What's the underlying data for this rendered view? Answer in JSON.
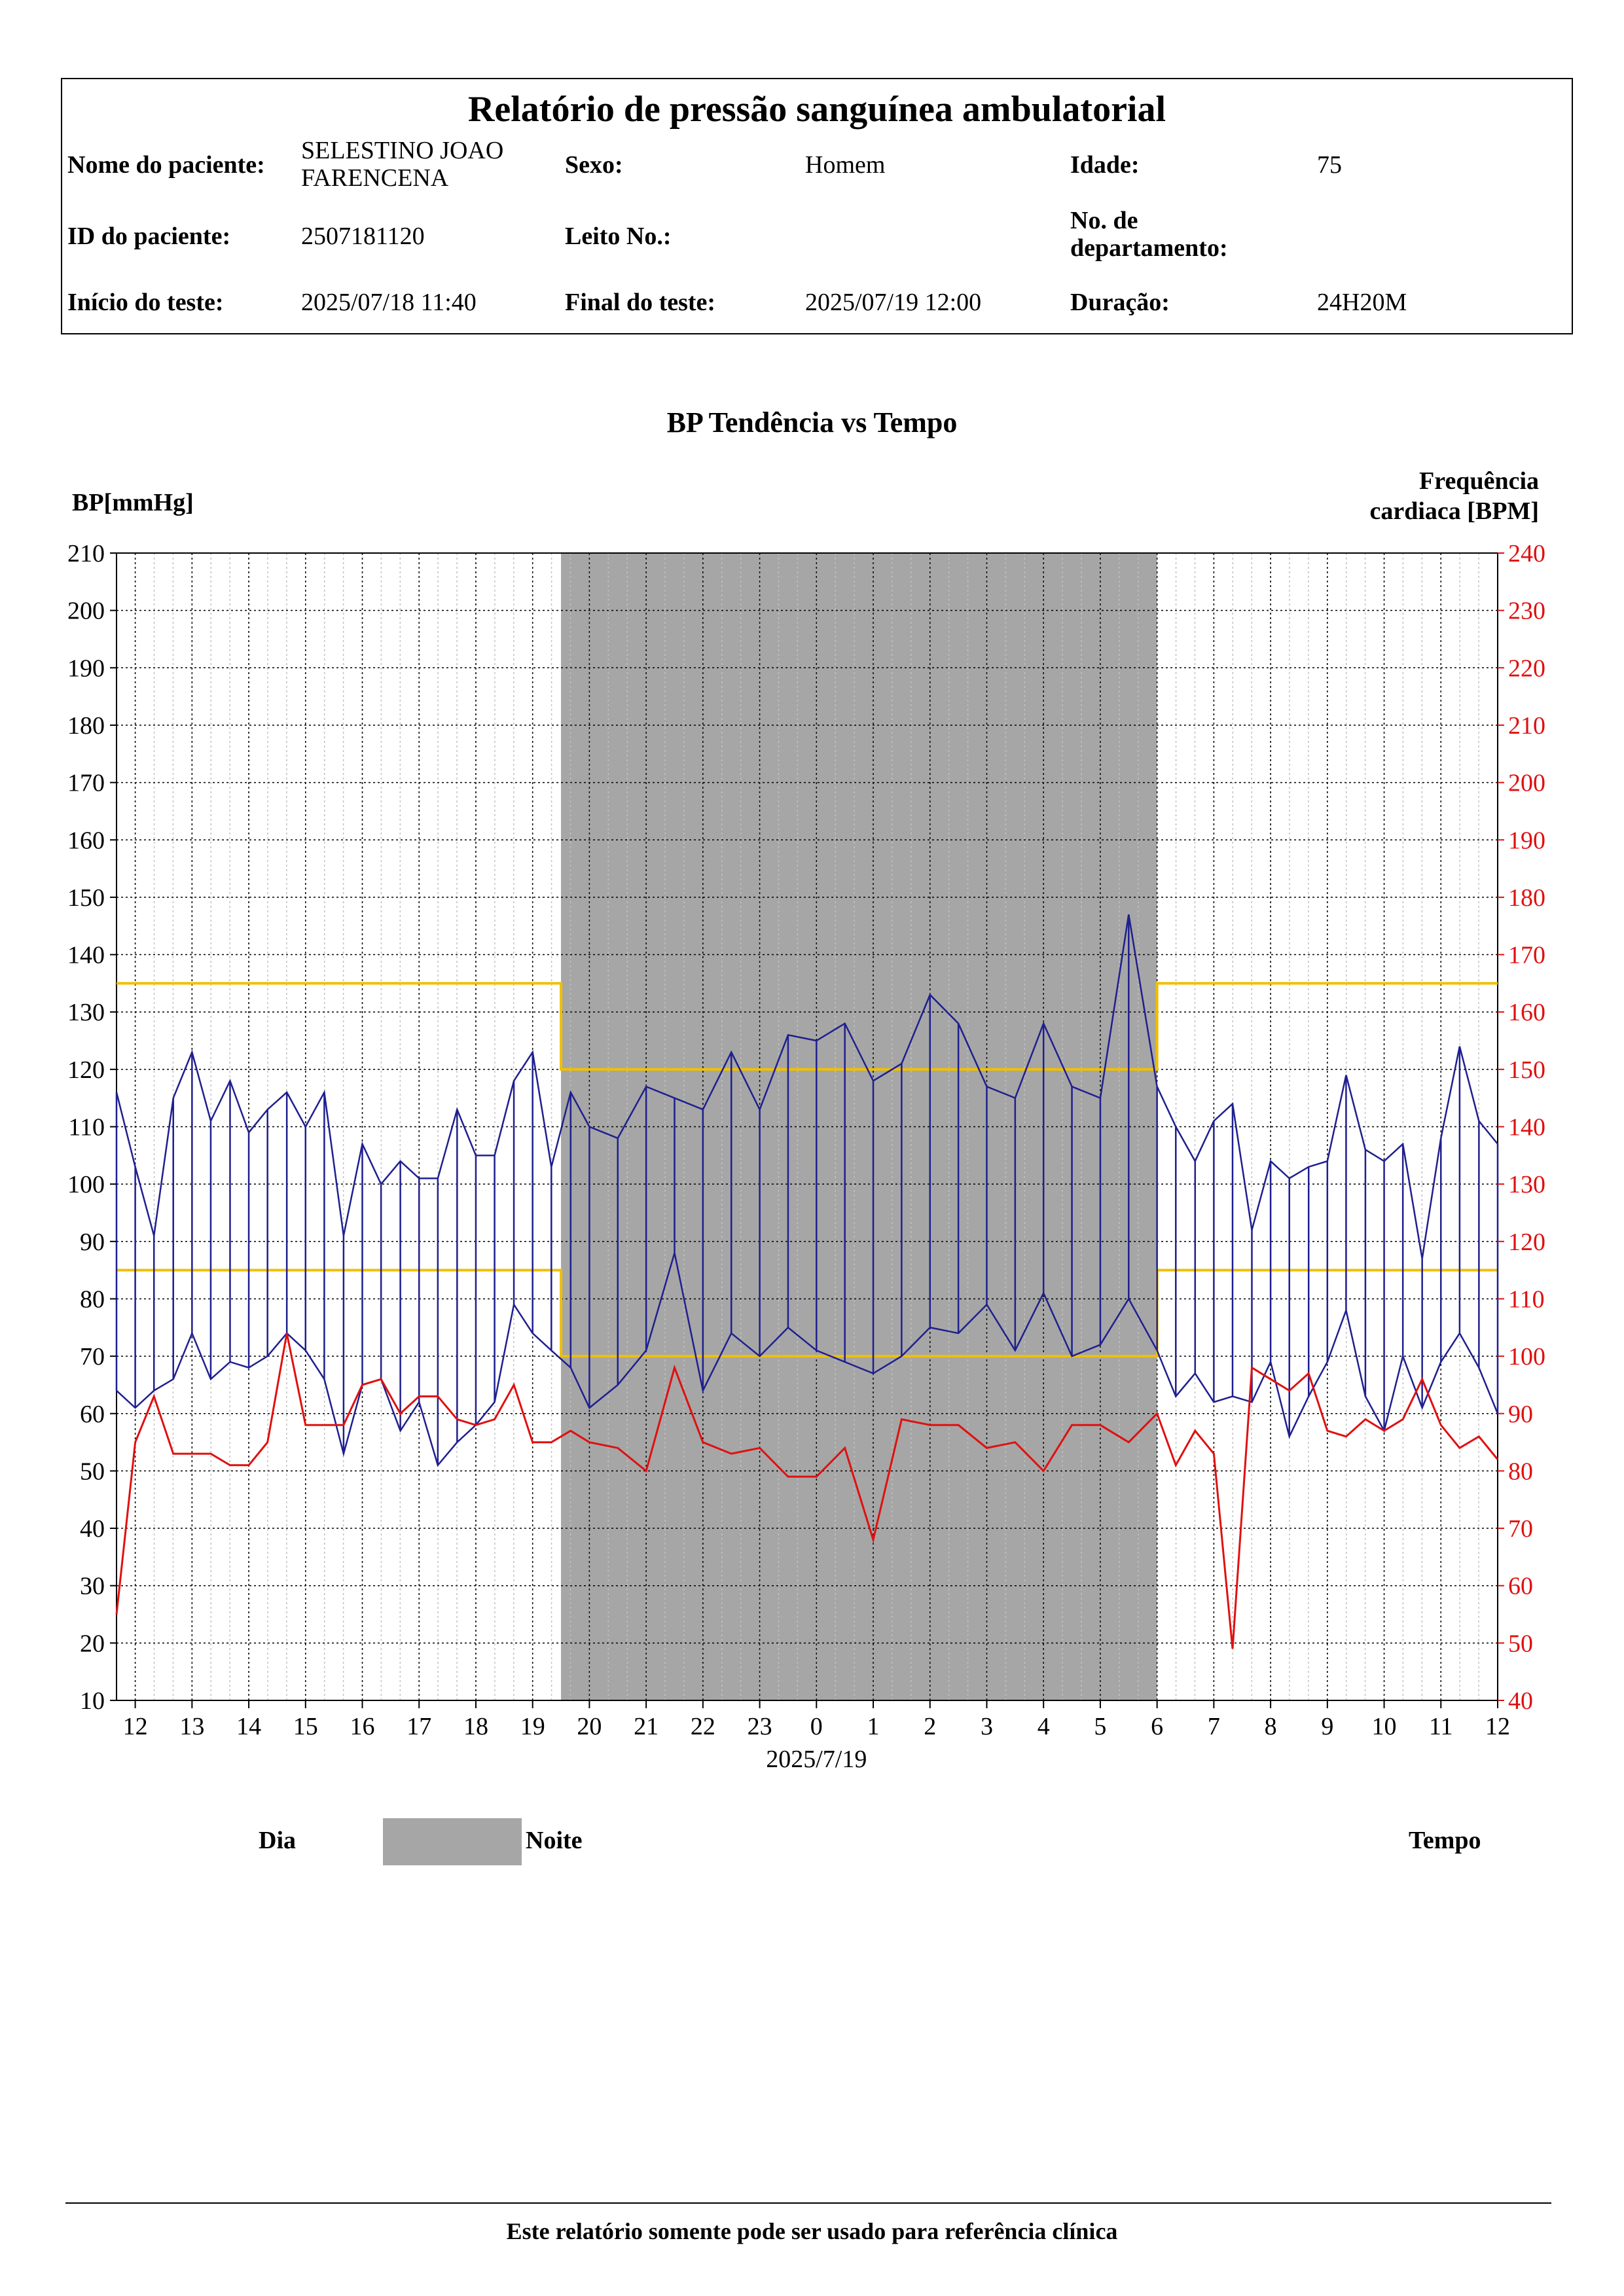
{
  "report": {
    "title": "Relatório de pressão sanguínea ambulatorial",
    "rows": [
      [
        {
          "label": "Nome do paciente:",
          "value": "SELESTINO JOAO FARENCENA"
        },
        {
          "label": "Sexo:",
          "value": "Homem"
        },
        {
          "label": "Idade:",
          "value": "75"
        }
      ],
      [
        {
          "label": "ID do paciente:",
          "value": "2507181120"
        },
        {
          "label": "Leito No.:",
          "value": ""
        },
        {
          "label": "No. de departamento:",
          "value": ""
        }
      ],
      [
        {
          "label": "Início do teste:",
          "value": "2025/07/18 11:40"
        },
        {
          "label": "Final do teste:",
          "value": "2025/07/19 12:00"
        },
        {
          "label": "Duração:",
          "value": "24H20M"
        }
      ]
    ]
  },
  "chart_data": {
    "type": "line",
    "title": "BP Tendência vs Tempo",
    "ylabel": "BP[mmHg]",
    "y2label": "Frequência cardiaca [BPM]",
    "xlabel": "2025/7/19",
    "ylim": [
      10,
      210
    ],
    "y2lim": [
      40,
      240
    ],
    "yticks": [
      10,
      20,
      30,
      40,
      50,
      60,
      70,
      80,
      90,
      100,
      110,
      120,
      130,
      140,
      150,
      160,
      170,
      180,
      190,
      200,
      210
    ],
    "y2ticks": [
      40,
      50,
      60,
      70,
      80,
      90,
      100,
      110,
      120,
      130,
      140,
      150,
      160,
      170,
      180,
      190,
      200,
      210,
      220,
      230,
      240
    ],
    "xticks": [
      "12",
      "13",
      "14",
      "15",
      "16",
      "17",
      "18",
      "19",
      "20",
      "21",
      "22",
      "23",
      "0",
      "1",
      "2",
      "3",
      "4",
      "5",
      "6",
      "7",
      "8",
      "9",
      "10",
      "11",
      "12"
    ],
    "grid": true,
    "night_period": [
      19.5,
      30
    ],
    "thresholds": {
      "day_systolic": 135,
      "day_diastolic": 85,
      "night_systolic": 120,
      "night_diastolic": 70
    },
    "colors": {
      "bp": "#1f1f8f",
      "hr": "#e01010",
      "threshold": "#f0c000",
      "night": "#a6a6a6"
    },
    "time": [
      11.67,
      12.0,
      12.33,
      12.67,
      13.0,
      13.33,
      13.67,
      14.0,
      14.33,
      14.67,
      15.0,
      15.33,
      15.67,
      16.0,
      16.33,
      16.67,
      17.0,
      17.33,
      17.67,
      18.0,
      18.33,
      18.67,
      19.0,
      19.33,
      19.67,
      20.0,
      20.5,
      21.0,
      21.5,
      22.0,
      22.5,
      23.0,
      23.5,
      24.0,
      24.5,
      25.0,
      25.5,
      26.0,
      26.5,
      27.0,
      27.5,
      28.0,
      28.5,
      29.0,
      29.5,
      30.0,
      30.33,
      30.67,
      31.0,
      31.33,
      31.67,
      32.0,
      32.33,
      32.67,
      33.0,
      33.33,
      33.67,
      34.0,
      34.33,
      34.67,
      35.0,
      35.33,
      35.67,
      36.0
    ],
    "series": [
      {
        "values": [
          116,
          103,
          91,
          115,
          123,
          111,
          118,
          109,
          113,
          116,
          110,
          116,
          91,
          107,
          100,
          104,
          101,
          101,
          113,
          105,
          105,
          118,
          123,
          103,
          116,
          110,
          108,
          117,
          115,
          113,
          123,
          113,
          126,
          125,
          128,
          118,
          121,
          133,
          128,
          117,
          115,
          128,
          117,
          115,
          147,
          117,
          110,
          104,
          111,
          114,
          92,
          104,
          101,
          103,
          104,
          119,
          106,
          104,
          107,
          87,
          108,
          124,
          111,
          107
        ]
      },
      {
        "values": [
          64,
          61,
          64,
          66,
          74,
          66,
          69,
          68,
          70,
          74,
          71,
          66,
          53,
          65,
          66,
          57,
          62,
          51,
          55,
          58,
          62,
          79,
          74,
          71,
          68,
          61,
          65,
          71,
          88,
          64,
          74,
          70,
          75,
          71,
          69,
          67,
          70,
          75,
          74,
          79,
          71,
          81,
          70,
          72,
          80,
          71,
          63,
          67,
          62,
          63,
          62,
          69,
          56,
          63,
          69,
          78,
          63,
          57,
          70,
          61,
          69,
          74,
          68,
          60
        ]
      },
      {
        "values": [
          55,
          85,
          93,
          83,
          83,
          83,
          81,
          81,
          85,
          104,
          88,
          88,
          88,
          95,
          96,
          90,
          93,
          93,
          89,
          88,
          89,
          95,
          85,
          85,
          87,
          85,
          84,
          80,
          98,
          85,
          83,
          84,
          79,
          79,
          84,
          68,
          89,
          88,
          88,
          84,
          85,
          80,
          88,
          88,
          85,
          90,
          81,
          87,
          83,
          49,
          98,
          96,
          94,
          97,
          87,
          86,
          89,
          87,
          89,
          96,
          88,
          84,
          86,
          82
        ]
      }
    ]
  },
  "legend": {
    "day": "Dia",
    "night": "Noite",
    "time": "Tempo"
  },
  "footer": "Este relatório somente pode ser usado para referência clínica"
}
